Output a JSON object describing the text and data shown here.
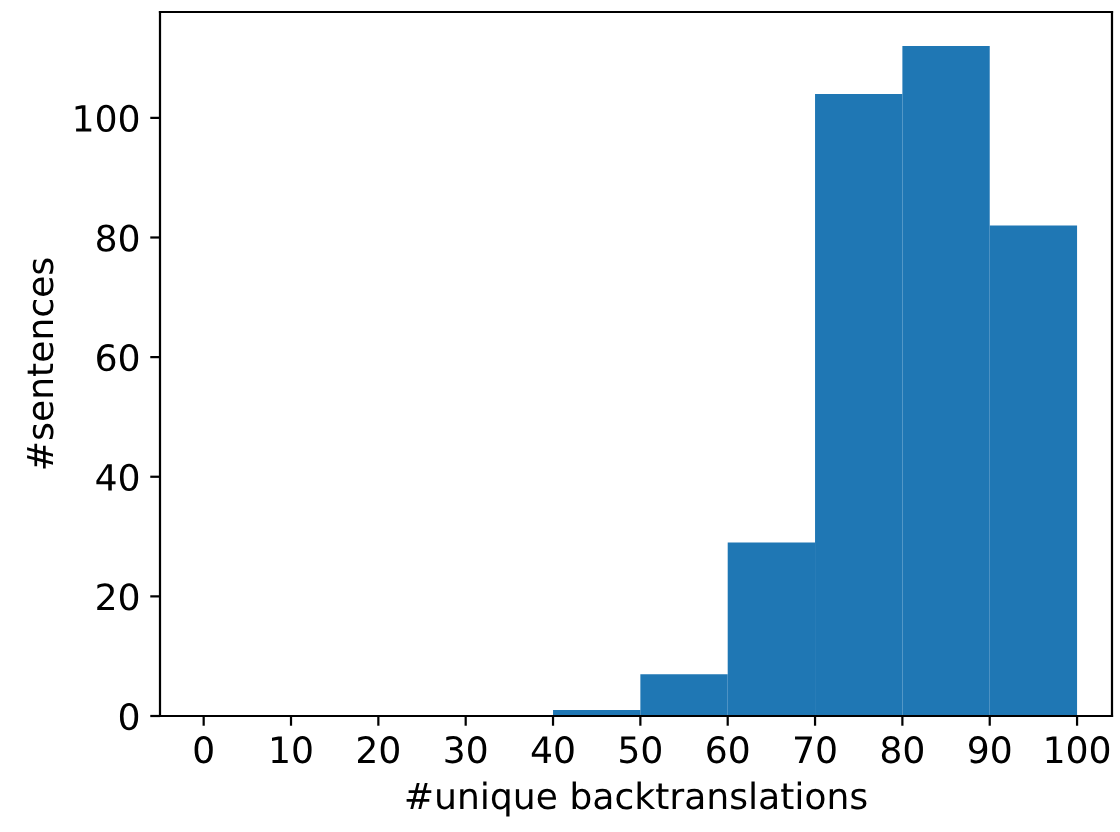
{
  "chart_data": {
    "type": "histogram",
    "xlabel": "#unique backtranslations",
    "ylabel": "#sentences",
    "bins": [
      0,
      10,
      20,
      30,
      40,
      50,
      60,
      70,
      80,
      90,
      100
    ],
    "values": [
      0,
      0,
      0,
      0,
      1,
      7,
      29,
      104,
      112,
      82
    ],
    "color": "#1f77b4",
    "xlim": [
      -5,
      104
    ],
    "xticks": [
      0,
      10,
      20,
      30,
      40,
      50,
      60,
      70,
      80,
      90,
      100
    ],
    "ylim": [
      0,
      117.7
    ],
    "yticks": [
      0,
      20,
      40,
      60,
      80,
      100
    ],
    "grid": false
  }
}
